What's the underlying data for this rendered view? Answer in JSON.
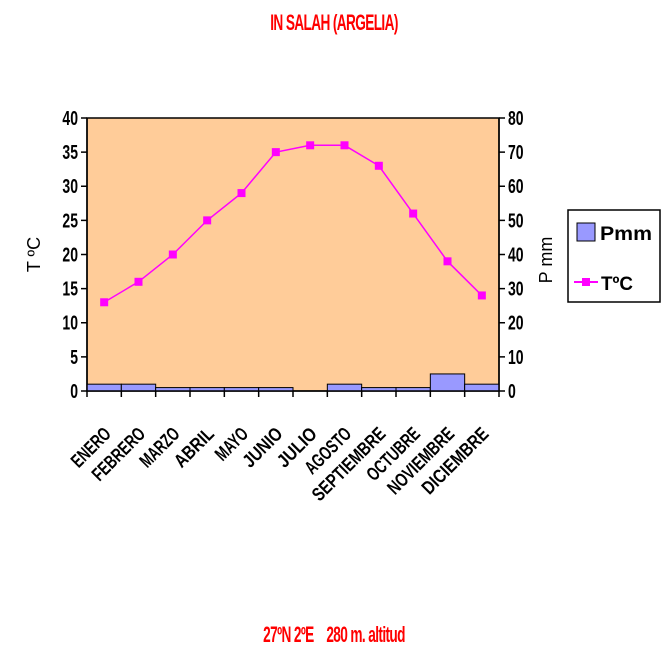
{
  "chart_data": {
    "type": "bar+line",
    "title": "IN SALAH (ARGELIA)",
    "subtitle": "27ºN 2ºE    280 m. altitud",
    "categories": [
      "ENERO",
      "FEBRERO",
      "MARZO",
      "ABRIL",
      "MAYO",
      "JUNIO",
      "JULIO",
      "AGOSTO",
      "SEPTIEMBRE",
      "OCTUBRE",
      "NOVIEMBRE",
      "DICIEMBRE"
    ],
    "series": [
      {
        "name": "Pmm",
        "type": "bar",
        "axis": "right",
        "color": "#9999ff",
        "values": [
          2,
          2,
          1,
          1,
          1,
          1,
          0,
          2,
          1,
          1,
          5,
          2
        ]
      },
      {
        "name": "TºC",
        "type": "line",
        "axis": "left",
        "color": "#ff00ff",
        "values": [
          13,
          16,
          20,
          25,
          29,
          35,
          36,
          36,
          33,
          26,
          19,
          14
        ]
      }
    ],
    "left_axis": {
      "label": "T ºC",
      "min": 0,
      "max": 40,
      "ticks": [
        0,
        5,
        10,
        15,
        20,
        25,
        30,
        35,
        40
      ]
    },
    "right_axis": {
      "label": "P mm",
      "min": 0,
      "max": 80,
      "ticks": [
        0,
        10,
        20,
        30,
        40,
        50,
        60,
        70,
        80
      ]
    },
    "plot_background": "#ffcc99",
    "legend_position": "right"
  }
}
